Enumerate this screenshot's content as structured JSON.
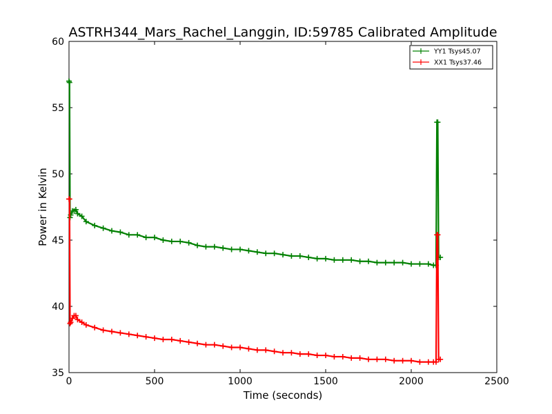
{
  "chart_data": {
    "type": "line",
    "title": "ASTRH344_Mars_Rachel_Langgin, ID:59785 Calibrated Amplitude",
    "xlabel": "Time (seconds)",
    "ylabel": "Power in Kelvin",
    "xlim": [
      0,
      2500
    ],
    "ylim": [
      35,
      60
    ],
    "xticks": [
      "0",
      "500",
      "1000",
      "1500",
      "2000",
      "2500"
    ],
    "yticks": [
      "35",
      "40",
      "45",
      "50",
      "55",
      "60"
    ],
    "grid": false,
    "legend_position": "top-right",
    "series": [
      {
        "name": "YY1 Tsys45.07",
        "color": "#008000",
        "marker": "+",
        "x": [
          0,
          3,
          6,
          10,
          20,
          30,
          40,
          50,
          75,
          100,
          150,
          200,
          250,
          300,
          350,
          400,
          450,
          500,
          550,
          600,
          650,
          700,
          750,
          800,
          850,
          900,
          950,
          1000,
          1050,
          1100,
          1150,
          1200,
          1250,
          1300,
          1350,
          1400,
          1450,
          1500,
          1550,
          1600,
          1650,
          1700,
          1750,
          1800,
          1850,
          1900,
          1950,
          2000,
          2050,
          2100,
          2130,
          2145,
          2150,
          2155,
          2160,
          2170
        ],
        "y": [
          57.0,
          56.9,
          46.7,
          46.9,
          47.2,
          47.2,
          47.3,
          47.0,
          46.8,
          46.4,
          46.1,
          45.9,
          45.7,
          45.6,
          45.4,
          45.4,
          45.2,
          45.2,
          45.0,
          44.9,
          44.9,
          44.8,
          44.6,
          44.5,
          44.5,
          44.4,
          44.3,
          44.3,
          44.2,
          44.1,
          44.0,
          44.0,
          43.9,
          43.8,
          43.8,
          43.7,
          43.6,
          43.6,
          43.5,
          43.5,
          43.5,
          43.4,
          43.4,
          43.3,
          43.3,
          43.3,
          43.3,
          43.2,
          43.2,
          43.2,
          43.1,
          43.1,
          53.9,
          53.9,
          43.7,
          43.7
        ]
      },
      {
        "name": "XX1 Tsys37.46",
        "color": "#ff0000",
        "marker": "+",
        "x": [
          0,
          3,
          6,
          10,
          20,
          30,
          40,
          50,
          75,
          100,
          150,
          200,
          250,
          300,
          350,
          400,
          450,
          500,
          550,
          600,
          650,
          700,
          750,
          800,
          850,
          900,
          950,
          1000,
          1050,
          1100,
          1150,
          1200,
          1250,
          1300,
          1350,
          1400,
          1450,
          1500,
          1550,
          1600,
          1650,
          1700,
          1750,
          1800,
          1850,
          1900,
          1950,
          2000,
          2050,
          2100,
          2130,
          2145,
          2150,
          2155,
          2160,
          2170
        ],
        "y": [
          48.1,
          48.1,
          38.7,
          38.8,
          39.1,
          39.3,
          39.3,
          39.0,
          38.8,
          38.6,
          38.4,
          38.2,
          38.1,
          38.0,
          37.9,
          37.8,
          37.7,
          37.6,
          37.5,
          37.5,
          37.4,
          37.3,
          37.2,
          37.1,
          37.1,
          37.0,
          36.9,
          36.9,
          36.8,
          36.7,
          36.7,
          36.6,
          36.5,
          36.5,
          36.4,
          36.4,
          36.3,
          36.3,
          36.2,
          36.2,
          36.1,
          36.1,
          36.0,
          36.0,
          36.0,
          35.9,
          35.9,
          35.9,
          35.8,
          35.8,
          35.8,
          35.8,
          45.4,
          45.4,
          36.0,
          36.0
        ]
      }
    ]
  }
}
